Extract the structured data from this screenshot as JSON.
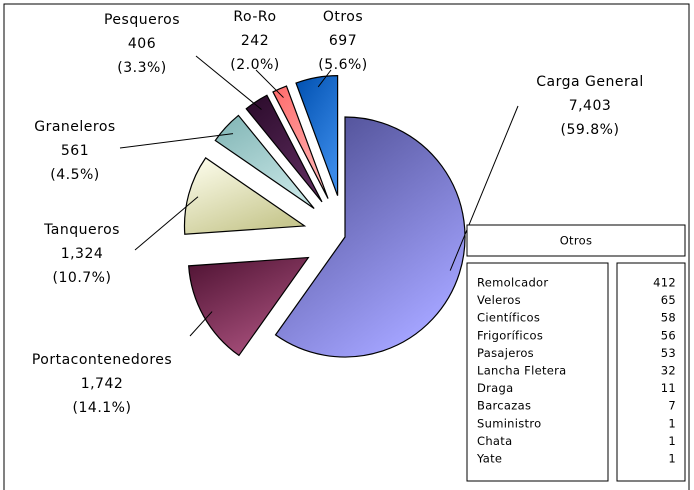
{
  "chart_data": {
    "type": "pie",
    "categories": [
      "Carga General",
      "Portacontenedores",
      "Tanqueros",
      "Graneleros",
      "Pesqueros",
      "Ro-Ro",
      "Otros"
    ],
    "values": [
      7403,
      1742,
      1324,
      561,
      406,
      242,
      697
    ],
    "value_labels": [
      "7,403",
      "1,742",
      "1,324",
      "561",
      "406",
      "242",
      "697"
    ],
    "percent_labels": [
      "(59.8%)",
      "(14.1%)",
      "(10.7%)",
      "(4.5%)",
      "(3.3%)",
      "(2.0%)",
      "(5.6%)"
    ],
    "colors": [
      [
        "#46468a",
        "#a4a4ff"
      ],
      [
        "#4e1232",
        "#a8507c"
      ],
      [
        "#fffff0",
        "#c8c890"
      ],
      [
        "#80b4b4",
        "#c4e4e4"
      ],
      [
        "#2a0a2a",
        "#5a2a5a"
      ],
      [
        "#ff6a6a",
        "#ffb0b0"
      ],
      [
        "#0050b0",
        "#3a8ae8"
      ]
    ]
  },
  "table": {
    "title": "Otros",
    "rows": [
      [
        "Remolcador",
        "412"
      ],
      [
        "Veleros",
        "65"
      ],
      [
        "Científicos",
        "58"
      ],
      [
        "Frigoríficos",
        "56"
      ],
      [
        "Pasajeros",
        "53"
      ],
      [
        "Lancha Fletera",
        "32"
      ],
      [
        "Draga",
        "11"
      ],
      [
        "Barcazas",
        "7"
      ],
      [
        "Suministro",
        "1"
      ],
      [
        "Chata",
        "1"
      ],
      [
        "Yate",
        "1"
      ]
    ]
  }
}
